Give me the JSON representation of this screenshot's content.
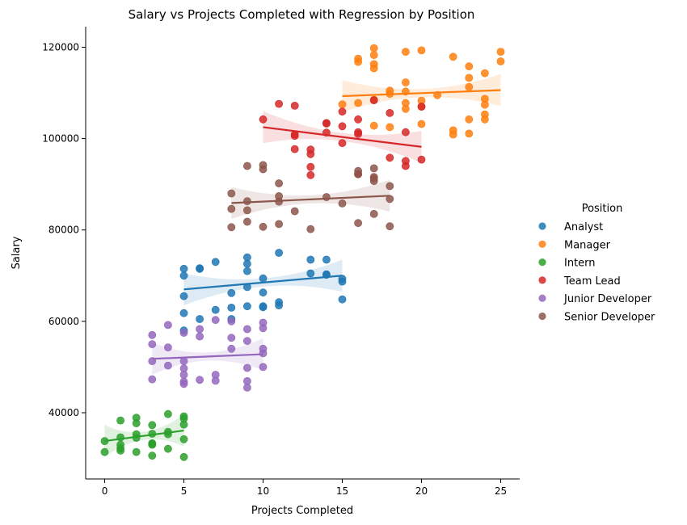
{
  "chart_data": {
    "type": "scatter",
    "title": "Salary vs Projects Completed with Regression by Position",
    "xlabel": "Projects Completed",
    "ylabel": "Salary",
    "xlim": [
      -1.2,
      26.2
    ],
    "ylim": [
      25500,
      124500
    ],
    "xticks": [
      0,
      5,
      10,
      15,
      20,
      25
    ],
    "yticks": [
      40000,
      60000,
      80000,
      100000,
      120000
    ],
    "grid": false,
    "legend": {
      "title": "Position",
      "placement": "right"
    },
    "series": [
      {
        "name": "Analyst",
        "color": "#1f77b4",
        "x": [
          5,
          5,
          5,
          5,
          5,
          6,
          6,
          6,
          7,
          7,
          8,
          8,
          8,
          9,
          9,
          9,
          9,
          9,
          10,
          10,
          10,
          10,
          11,
          11,
          11,
          13,
          13,
          14,
          14,
          14,
          15,
          15,
          15
        ],
        "y": [
          71500,
          70000,
          65500,
          61800,
          58000,
          71500,
          71600,
          60500,
          73000,
          62500,
          66200,
          63000,
          60500,
          74000,
          72600,
          71000,
          67500,
          63300,
          69400,
          66300,
          63300,
          63100,
          75000,
          64200,
          63500,
          73500,
          70500,
          73500,
          70300,
          70200,
          69300,
          68700,
          64800
        ],
        "regression": {
          "x": [
            5,
            15
          ],
          "y": [
            67000,
            70000
          ]
        }
      },
      {
        "name": "Manager",
        "color": "#ff7f0e",
        "x": [
          15,
          16,
          16,
          16,
          17,
          17,
          17,
          17,
          17,
          17,
          18,
          18,
          18,
          19,
          19,
          19,
          19,
          19,
          20,
          20,
          20,
          20,
          21,
          22,
          22,
          22,
          23,
          23,
          23,
          23,
          23,
          24,
          24,
          24,
          24,
          24,
          25,
          25
        ],
        "y": [
          107500,
          117500,
          116800,
          107800,
          119800,
          118300,
          116300,
          115400,
          108500,
          102800,
          110500,
          109800,
          102500,
          119000,
          112300,
          110300,
          107800,
          106500,
          119300,
          108300,
          107000,
          103200,
          109500,
          117900,
          101800,
          100900,
          115800,
          113300,
          111300,
          104200,
          101100,
          114300,
          108700,
          107400,
          105300,
          104200,
          119000,
          116900
        ],
        "regression": {
          "x": [
            15,
            25
          ],
          "y": [
            109300,
            110600
          ]
        }
      },
      {
        "name": "Intern",
        "color": "#2ca02c",
        "x": [
          0,
          0,
          1,
          1,
          1,
          1,
          1,
          2,
          2,
          2,
          2,
          2,
          3,
          3,
          3,
          3,
          3,
          3,
          4,
          4,
          4,
          4,
          5,
          5,
          5,
          5,
          5
        ],
        "y": [
          33800,
          31400,
          38300,
          34600,
          33000,
          32200,
          31700,
          38900,
          37700,
          35300,
          34500,
          31400,
          37300,
          35400,
          33300,
          33000,
          30600,
          33200,
          39700,
          35800,
          35300,
          32100,
          39200,
          38700,
          37400,
          34200,
          30300
        ],
        "regression": {
          "x": [
            0,
            5
          ],
          "y": [
            33800,
            36100
          ]
        }
      },
      {
        "name": "Team Lead",
        "color": "#d62728",
        "x": [
          10,
          11,
          12,
          12,
          12,
          12,
          13,
          13,
          13,
          13,
          14,
          14,
          14,
          15,
          15,
          15,
          16,
          16,
          16,
          16,
          17,
          17,
          18,
          18,
          19,
          19,
          19,
          20,
          20
        ],
        "y": [
          104200,
          107600,
          107200,
          100900,
          100600,
          97700,
          97600,
          96600,
          93800,
          92000,
          103400,
          103300,
          101300,
          105900,
          102700,
          99000,
          104200,
          101400,
          101000,
          92200,
          108400,
          91300,
          105600,
          95800,
          101400,
          95100,
          94000,
          107000,
          95400
        ],
        "regression": {
          "x": [
            10,
            20
          ],
          "y": [
            102500,
            98200
          ]
        }
      },
      {
        "name": "Junior Developer",
        "color": "#9467bd",
        "x": [
          3,
          3,
          3,
          3,
          4,
          4,
          4,
          5,
          5,
          5,
          5,
          5,
          5,
          6,
          6,
          6,
          7,
          7,
          7,
          8,
          8,
          8,
          9,
          9,
          9,
          9,
          9,
          10,
          10,
          10,
          10,
          10
        ],
        "y": [
          57000,
          55000,
          51300,
          47300,
          59200,
          54300,
          50300,
          57500,
          51300,
          49700,
          48300,
          46800,
          46300,
          58300,
          56700,
          47200,
          60300,
          48300,
          47000,
          60000,
          56400,
          54000,
          58300,
          55700,
          49800,
          46900,
          45500,
          59700,
          58500,
          54000,
          53000,
          50000
        ],
        "regression": {
          "x": [
            3,
            10
          ],
          "y": [
            51800,
            52800
          ]
        }
      },
      {
        "name": "Senior Developer",
        "color": "#8c564b",
        "x": [
          8,
          8,
          8,
          9,
          9,
          9,
          9,
          10,
          10,
          10,
          11,
          11,
          11,
          11,
          12,
          13,
          14,
          15,
          16,
          16,
          16,
          17,
          17,
          17,
          17,
          18,
          18,
          18
        ],
        "y": [
          88000,
          84600,
          80600,
          94000,
          86300,
          84300,
          81800,
          94200,
          93300,
          80700,
          90200,
          87400,
          86200,
          81300,
          84100,
          80200,
          87200,
          85800,
          92900,
          92200,
          81500,
          93500,
          91600,
          90700,
          83500,
          89600,
          86800,
          80800
        ],
        "regression": {
          "x": [
            8,
            18
          ],
          "y": [
            85900,
            87500
          ]
        }
      }
    ]
  }
}
